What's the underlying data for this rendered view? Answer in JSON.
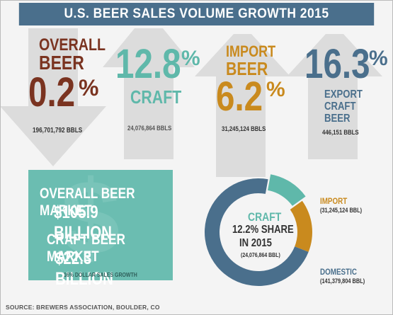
{
  "title": "U.S. BEER SALES VOLUME GROWTH 2015",
  "overall": {
    "label_line1": "OVERALL",
    "label_line2": "BEER",
    "value": "0.2",
    "pct": "%",
    "volume": "196,701,792 BBLS"
  },
  "craft": {
    "value": "12.8",
    "pct": "%",
    "label": "CRAFT",
    "volume": "24,076,864 BBLS"
  },
  "import": {
    "label_line1": "IMPORT",
    "label_line2": "BEER",
    "value": "6.2",
    "pct": "%",
    "volume": "31,245,124 BBLS"
  },
  "export": {
    "value": "16.3",
    "pct": "%",
    "label_line1": "EXPORT",
    "label_line2": "CRAFT",
    "label_line3": "BEER",
    "volume": "446,151 BBLS"
  },
  "market": {
    "overall_label": "OVERALL BEER MARKET",
    "overall_value": "$105.9 BILLION",
    "craft_label": "CRAFT BEER MARKET",
    "craft_value": "$22.3 BILLION",
    "growth_note": "16% DOLLAR SALES GROWTH",
    "dollar_sign": "$"
  },
  "donut": {
    "center_label": "CRAFT",
    "center_line1": "12.2% SHARE",
    "center_line2": "IN 2015",
    "center_volume": "(24,076,864 BBL)",
    "import_label": "IMPORT",
    "import_volume": "(31,245,124 BBL)",
    "domestic_label": "DOMESTIC",
    "domestic_volume": "(141,379,804 BBL)"
  },
  "source": "SOURCE: BREWERS ASSOCIATION, BOULDER, CO",
  "colors": {
    "banner": "#4a6f8c",
    "overall": "#7a3320",
    "craft": "#5fb8aa",
    "import": "#c98a1e",
    "export": "#4a6f8c",
    "arrow": "#dcdcdc"
  },
  "chart_data": {
    "type": "pie",
    "title": "",
    "categories": [
      "CRAFT",
      "IMPORT",
      "DOMESTIC"
    ],
    "values": [
      24076864,
      31245124,
      141379804
    ],
    "unit": "BBL",
    "share_note": "12.2% SHARE IN 2015",
    "growth_pct": {
      "OVERALL BEER": 0.2,
      "CRAFT": 12.8,
      "IMPORT BEER": 6.2,
      "EXPORT CRAFT BEER": 16.3
    }
  }
}
